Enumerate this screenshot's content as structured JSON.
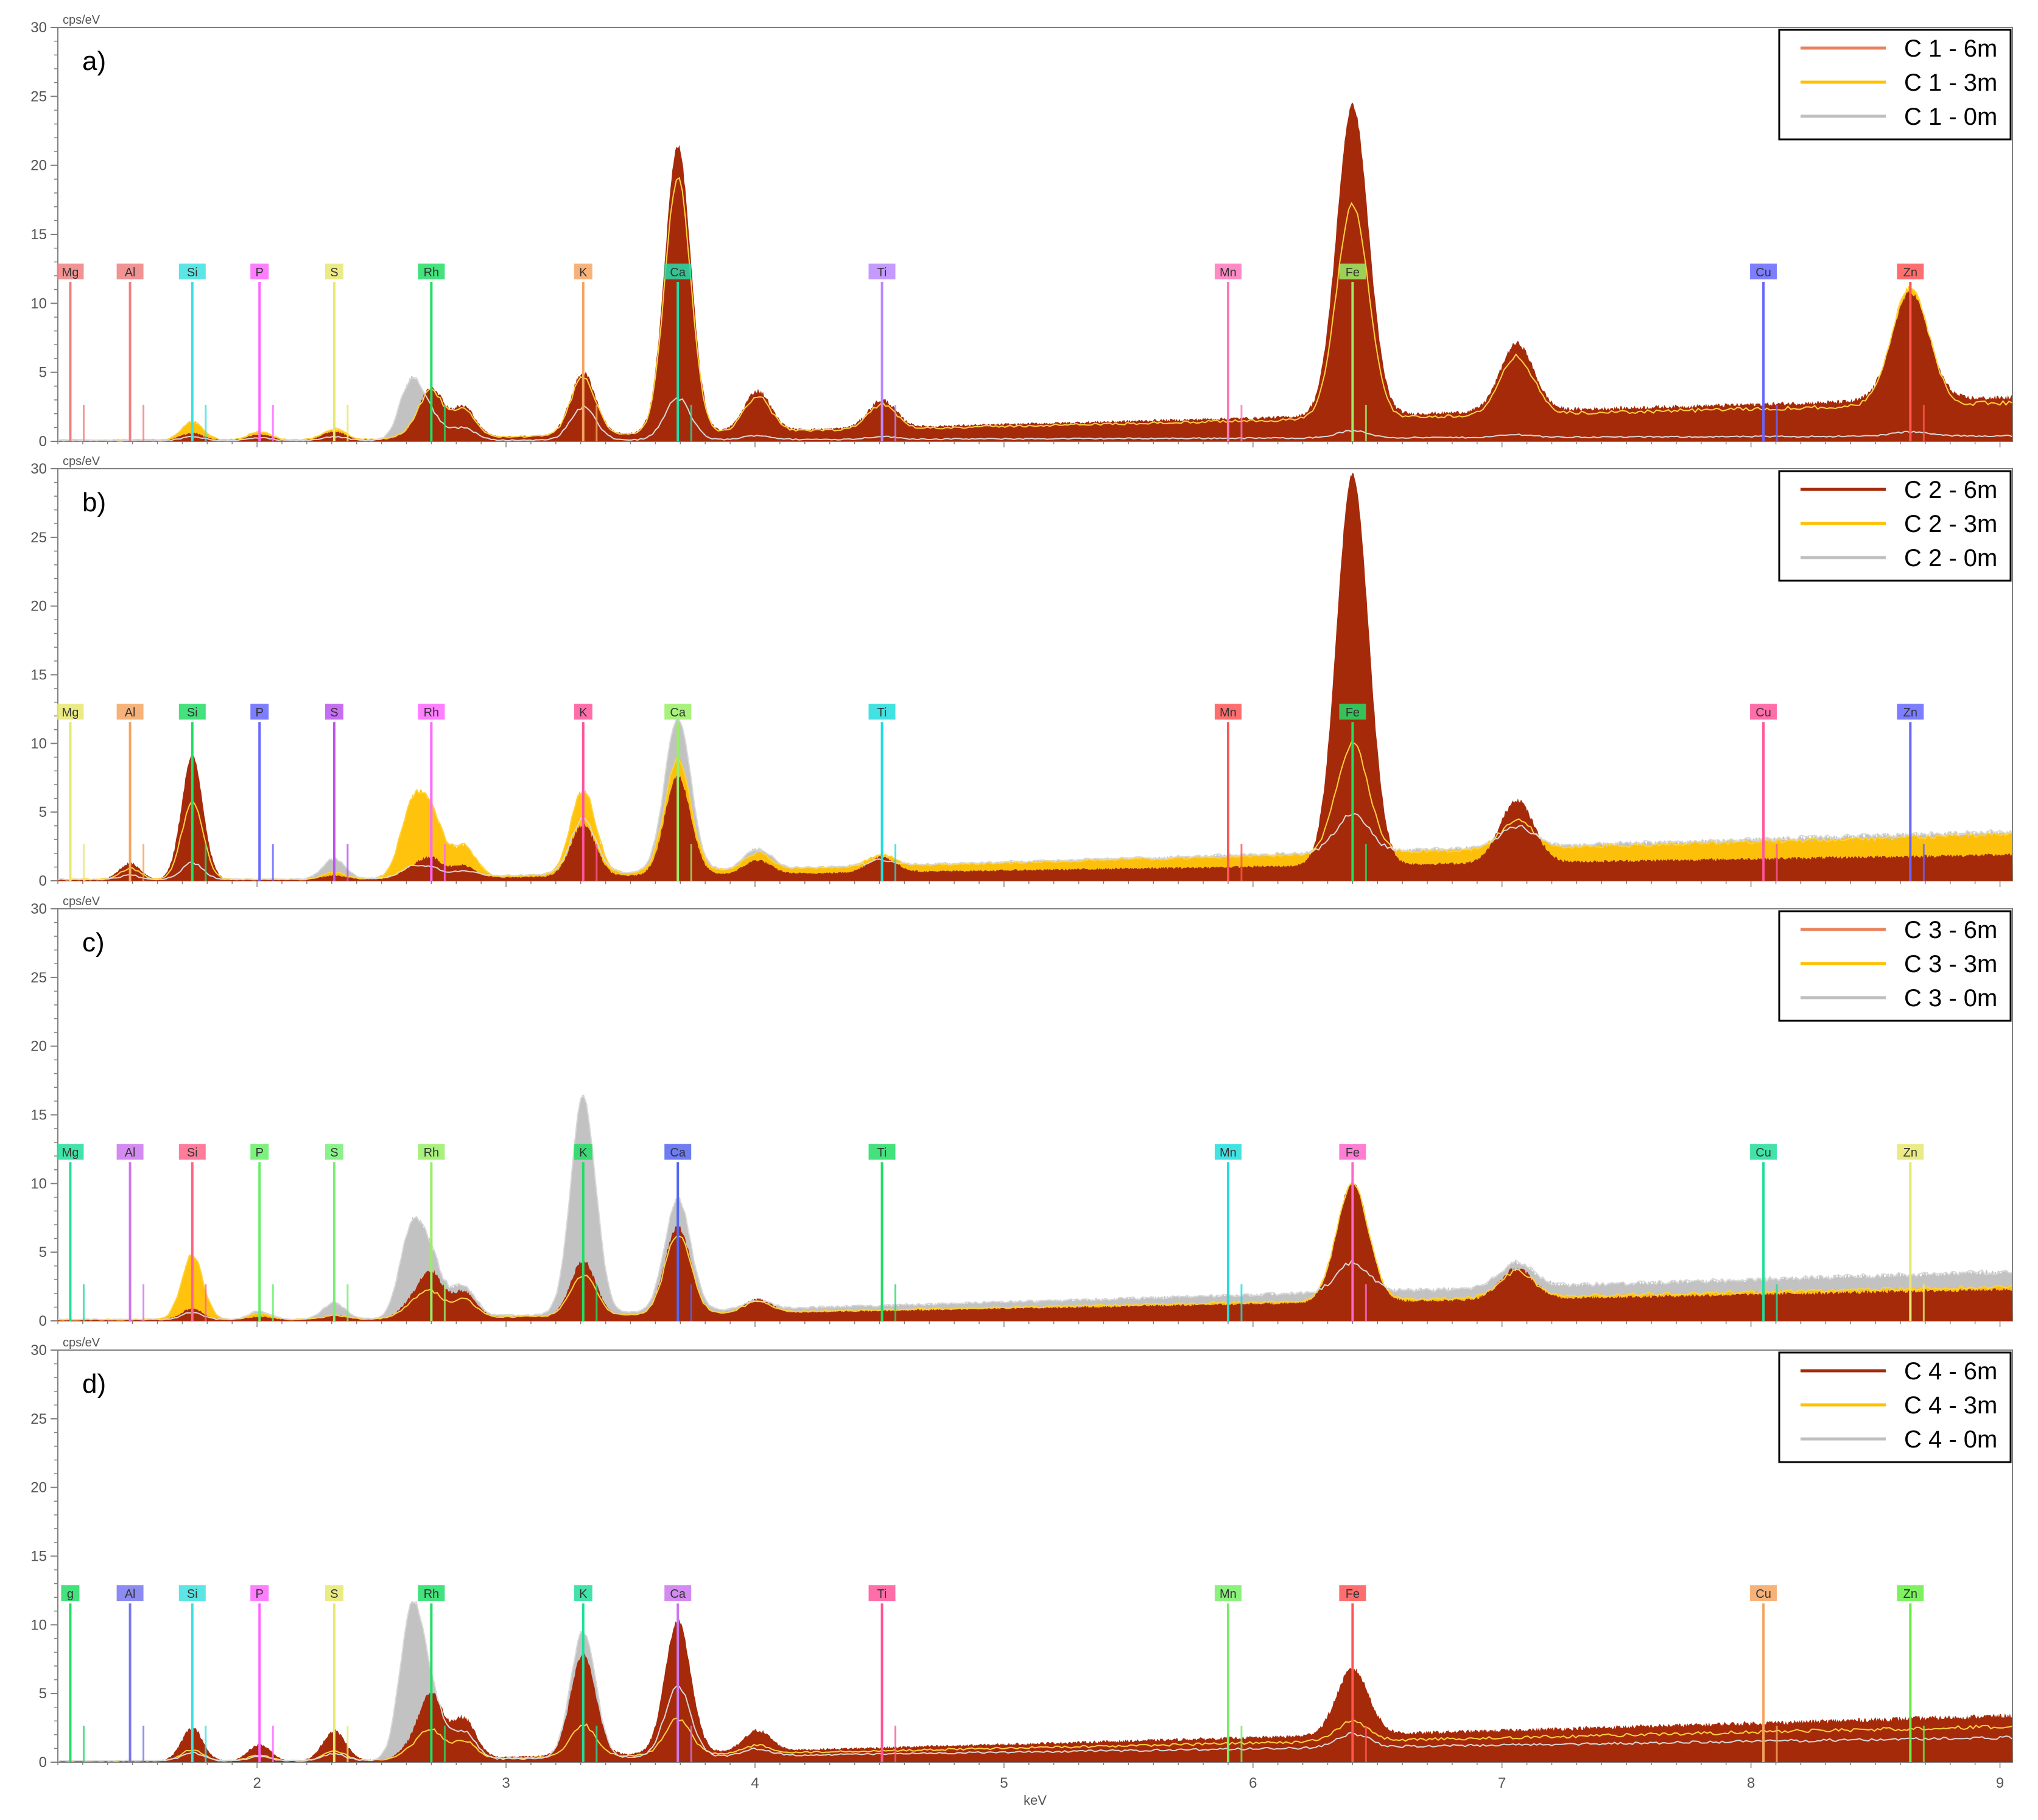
{
  "colors": {
    "series_6m": "#a52a0a",
    "series_3m": "#ffc000",
    "series_0m": "#bfbfbf",
    "legend_6m": "#e9825c",
    "frame": "#000000",
    "axis": "#7f7f7f"
  },
  "figure": {
    "xlabel": "keV",
    "x_ticks": [
      "2",
      "3",
      "4",
      "5",
      "6",
      "7",
      "8",
      "9"
    ],
    "y_ticks": [
      "0",
      "5",
      "10",
      "15",
      "20",
      "25",
      "30"
    ],
    "ylabel": "cps/eV"
  },
  "chart_data": [
    {
      "type": "area",
      "panel_label": "a)",
      "xlim": [
        1.2,
        9.05
      ],
      "ylim": [
        0,
        30
      ],
      "ylabel": "cps/eV",
      "xlabel": "",
      "grid": false,
      "legend_position": "top-right",
      "legend": [
        "C 1 - 6m",
        "C 1 - 3m",
        "C 1 - 0m"
      ],
      "element_markers": [
        {
          "label": "Mg",
          "x": 1.25,
          "color": "#f08080"
        },
        {
          "label": "Al",
          "x": 1.49,
          "color": "#f08080"
        },
        {
          "label": "Si",
          "x": 1.74,
          "color": "#40e0e0"
        },
        {
          "label": "P",
          "x": 2.01,
          "color": "#ff66ff"
        },
        {
          "label": "S",
          "x": 2.31,
          "color": "#e8e870"
        },
        {
          "label": "Rh",
          "x": 2.7,
          "color": "#22dd66"
        },
        {
          "label": "K",
          "x": 3.31,
          "color": "#f4a460"
        },
        {
          "label": "Ca",
          "x": 3.69,
          "color": "#22ddaa"
        },
        {
          "label": "Ti",
          "x": 4.51,
          "color": "#bb88ff"
        },
        {
          "label": "Mn",
          "x": 5.9,
          "color": "#ff77bb"
        },
        {
          "label": "Fe",
          "x": 6.4,
          "color": "#99ee66"
        },
        {
          "label": "Cu",
          "x": 8.05,
          "color": "#6666ff"
        },
        {
          "label": "Zn",
          "x": 8.64,
          "color": "#ff5555"
        }
      ],
      "peaks": {
        "x": [
          1.74,
          2.01,
          2.31,
          2.62,
          2.7,
          2.83,
          3.31,
          3.69,
          4.01,
          4.51,
          6.4,
          7.06,
          8.64
        ],
        "6m": [
          0.5,
          0.4,
          0.6,
          0.3,
          3.6,
          2.2,
          4.5,
          20.8,
          2.9,
          2.0,
          22.5,
          4.9,
          7.8
        ],
        "3m": [
          1.3,
          0.6,
          0.8,
          0.4,
          3.3,
          2.0,
          4.2,
          18.5,
          2.6,
          1.8,
          15.5,
          4.2,
          8.6
        ],
        "0m": [
          0.3,
          0.2,
          0.3,
          4.2,
          1.5,
          0.9,
          2.4,
          3.0,
          0.3,
          0.2,
          0.5,
          0.2,
          0.3
        ]
      },
      "background_6m": [
        0.1,
        3.2
      ],
      "background_3m": [
        0.1,
        2.8
      ],
      "background_0m": [
        0.05,
        0.4
      ]
    },
    {
      "type": "area",
      "panel_label": "b)",
      "xlim": [
        1.2,
        9.05
      ],
      "ylim": [
        0,
        30
      ],
      "ylabel": "cps/eV",
      "xlabel": "",
      "grid": false,
      "legend_position": "top-right",
      "legend": [
        "C 2 - 6m",
        "C 2 - 3m",
        "C 2 - 0m"
      ],
      "element_markers": [
        {
          "label": "Mg",
          "x": 1.25,
          "color": "#e8e870"
        },
        {
          "label": "Al",
          "x": 1.49,
          "color": "#f4a460"
        },
        {
          "label": "Si",
          "x": 1.74,
          "color": "#22dd66"
        },
        {
          "label": "P",
          "x": 2.01,
          "color": "#6666ff"
        },
        {
          "label": "S",
          "x": 2.31,
          "color": "#bb55ee"
        },
        {
          "label": "Rh",
          "x": 2.7,
          "color": "#ff66ff"
        },
        {
          "label": "K",
          "x": 3.31,
          "color": "#ff5599"
        },
        {
          "label": "Ca",
          "x": 3.69,
          "color": "#99ee66"
        },
        {
          "label": "Ti",
          "x": 4.51,
          "color": "#22dddd"
        },
        {
          "label": "Mn",
          "x": 5.9,
          "color": "#ff5555"
        },
        {
          "label": "Fe",
          "x": 6.4,
          "color": "#22dd66"
        },
        {
          "label": "Cu",
          "x": 8.05,
          "color": "#ff5599"
        },
        {
          "label": "Zn",
          "x": 8.64,
          "color": "#6666ff"
        }
      ],
      "peaks": {
        "x": [
          1.49,
          1.74,
          2.31,
          2.62,
          2.7,
          2.83,
          3.31,
          3.69,
          4.01,
          4.51,
          6.4,
          7.06
        ],
        "6m": [
          1.2,
          9.0,
          0.3,
          0.6,
          1.4,
          0.9,
          3.8,
          7.2,
          1.0,
          1.1,
          28.5,
          4.6
        ],
        "3m": [
          0.8,
          5.6,
          0.5,
          4.8,
          4.2,
          2.2,
          6.1,
          8.2,
          1.2,
          0.8,
          8.0,
          2.0
        ],
        "0m": [
          0.3,
          1.2,
          1.5,
          0.7,
          0.6,
          0.4,
          4.0,
          11.2,
          1.5,
          0.4,
          2.8,
          1.5
        ]
      },
      "background_6m": [
        0.1,
        1.9
      ],
      "background_3m": [
        0.1,
        3.4
      ],
      "background_0m": [
        0.1,
        3.6
      ]
    },
    {
      "type": "area",
      "panel_label": "c)",
      "xlim": [
        1.2,
        9.05
      ],
      "ylim": [
        0,
        30
      ],
      "ylabel": "cps/eV",
      "xlabel": "",
      "grid": false,
      "legend_position": "top-right",
      "legend": [
        "C 3 - 6m",
        "C 3 - 3m",
        "C 3 - 0m"
      ],
      "element_markers": [
        {
          "label": "Mg",
          "x": 1.25,
          "color": "#22dd99"
        },
        {
          "label": "Al",
          "x": 1.49,
          "color": "#cc77ee"
        },
        {
          "label": "Si",
          "x": 1.74,
          "color": "#ff6688"
        },
        {
          "label": "P",
          "x": 2.01,
          "color": "#66ee66"
        },
        {
          "label": "S",
          "x": 2.31,
          "color": "#77ee77"
        },
        {
          "label": "Rh",
          "x": 2.7,
          "color": "#99ee66"
        },
        {
          "label": "K",
          "x": 3.31,
          "color": "#22dd66"
        },
        {
          "label": "Ca",
          "x": 3.69,
          "color": "#5566ee"
        },
        {
          "label": "Ti",
          "x": 4.51,
          "color": "#22dd66"
        },
        {
          "label": "Mn",
          "x": 5.9,
          "color": "#22dddd"
        },
        {
          "label": "Fe",
          "x": 6.4,
          "color": "#ff66cc"
        },
        {
          "label": "Cu",
          "x": 8.05,
          "color": "#22dd99"
        },
        {
          "label": "Zn",
          "x": 8.64,
          "color": "#e8e870"
        }
      ],
      "peaks": {
        "x": [
          1.74,
          2.01,
          2.31,
          2.62,
          2.7,
          2.83,
          3.31,
          3.69,
          4.01,
          6.4,
          7.06
        ],
        "6m": [
          0.8,
          0.2,
          0.3,
          1.0,
          3.2,
          1.9,
          4.0,
          6.4,
          1.0,
          8.7,
          2.2
        ],
        "3m": [
          4.7,
          0.4,
          0.3,
          0.8,
          1.8,
          1.3,
          3.0,
          5.8,
          0.8,
          8.5,
          1.9
        ],
        "0m": [
          0.5,
          0.6,
          1.2,
          6.2,
          3.8,
          2.2,
          15.8,
          8.2,
          0.6,
          2.1,
          1.8
        ]
      },
      "background_6m": [
        0.1,
        2.3
      ],
      "background_3m": [
        0.1,
        2.5
      ],
      "background_0m": [
        0.1,
        3.6
      ]
    },
    {
      "type": "area",
      "panel_label": "d)",
      "xlim": [
        1.2,
        9.05
      ],
      "ylim": [
        0,
        30
      ],
      "ylabel": "cps/eV",
      "xlabel": "keV",
      "grid": false,
      "legend_position": "top-right",
      "legend": [
        "C 4 - 6m",
        "C 4 - 3m",
        "C 4 - 0m"
      ],
      "element_markers": [
        {
          "label": "g",
          "x": 1.25,
          "color": "#22dd66"
        },
        {
          "label": "Al",
          "x": 1.49,
          "color": "#7777ee"
        },
        {
          "label": "Si",
          "x": 1.74,
          "color": "#40e0e0"
        },
        {
          "label": "P",
          "x": 2.01,
          "color": "#ff66ff"
        },
        {
          "label": "S",
          "x": 2.31,
          "color": "#e8e870"
        },
        {
          "label": "Rh",
          "x": 2.7,
          "color": "#22dd66"
        },
        {
          "label": "K",
          "x": 3.31,
          "color": "#22dd99"
        },
        {
          "label": "Ca",
          "x": 3.69,
          "color": "#cc77ee"
        },
        {
          "label": "Ti",
          "x": 4.51,
          "color": "#ff5599"
        },
        {
          "label": "Mn",
          "x": 5.9,
          "color": "#77ee66"
        },
        {
          "label": "Fe",
          "x": 6.4,
          "color": "#ff5555"
        },
        {
          "label": "Cu",
          "x": 8.05,
          "color": "#f4a460"
        },
        {
          "label": "Zn",
          "x": 8.64,
          "color": "#66ee44"
        }
      ],
      "peaks": {
        "x": [
          1.74,
          2.01,
          2.31,
          2.62,
          2.7,
          2.83,
          3.31,
          3.69,
          4.01,
          6.4
        ],
        "6m": [
          2.4,
          1.2,
          2.2,
          0.8,
          4.6,
          2.9,
          7.4,
          9.6,
          1.5,
          4.8
        ],
        "3m": [
          0.8,
          0.4,
          0.7,
          0.6,
          2.0,
          1.3,
          2.3,
          2.6,
          0.6,
          1.4
        ],
        "0m": [
          0.6,
          0.3,
          0.5,
          10.5,
          4.0,
          2.0,
          9.2,
          5.2,
          0.5,
          1.0
        ]
      },
      "background_6m": [
        0.1,
        3.4
      ],
      "background_3m": [
        0.1,
        2.6
      ],
      "background_0m": [
        0.1,
        1.8
      ]
    }
  ]
}
